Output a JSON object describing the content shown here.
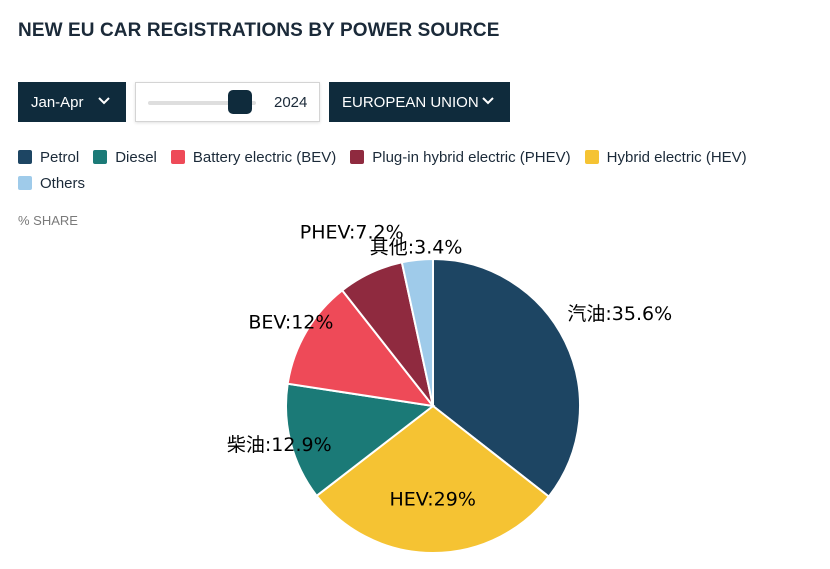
{
  "header": {
    "title": "NEW EU CAR REGISTRATIONS BY POWER SOURCE"
  },
  "controls": {
    "period": {
      "label": "Jan-Apr",
      "icon": "chevron-down-icon"
    },
    "year_slider": {
      "value": "2024",
      "position_fraction": 0.85
    },
    "region": {
      "label": "EUROPEAN UNION",
      "icon": "chevron-down-icon"
    }
  },
  "legend": [
    {
      "label": "Petrol",
      "color": "#1d4563"
    },
    {
      "label": "Diesel",
      "color": "#1b7a77"
    },
    {
      "label": "Battery electric (BEV)",
      "color": "#ee4a58"
    },
    {
      "label": "Plug-in hybrid electric (PHEV)",
      "color": "#8f2a3f"
    },
    {
      "label": "Hybrid electric (HEV)",
      "color": "#f5c333"
    },
    {
      "label": "Others",
      "color": "#9fcbea"
    }
  ],
  "axis_note": "% SHARE",
  "chart_data": {
    "type": "pie",
    "slices": [
      {
        "name": "Petrol",
        "label": "汽油:35.6%",
        "value": 35.6,
        "color": "#1d4563"
      },
      {
        "name": "HEV",
        "label": "HEV:29%",
        "value": 29,
        "color": "#f5c333"
      },
      {
        "name": "Diesel",
        "label": "柴油:12.9%",
        "value": 12.9,
        "color": "#1b7a77"
      },
      {
        "name": "BEV",
        "label": "BEV:12%",
        "value": 12,
        "color": "#ee4a58"
      },
      {
        "name": "PHEV",
        "label": "PHEV:7.2%",
        "value": 7.2,
        "color": "#8f2a3f"
      },
      {
        "name": "Others",
        "label": "其他:3.4%",
        "value": 3.4,
        "color": "#9fcbea"
      }
    ],
    "start": "12 o'clock",
    "direction": "clockwise"
  }
}
